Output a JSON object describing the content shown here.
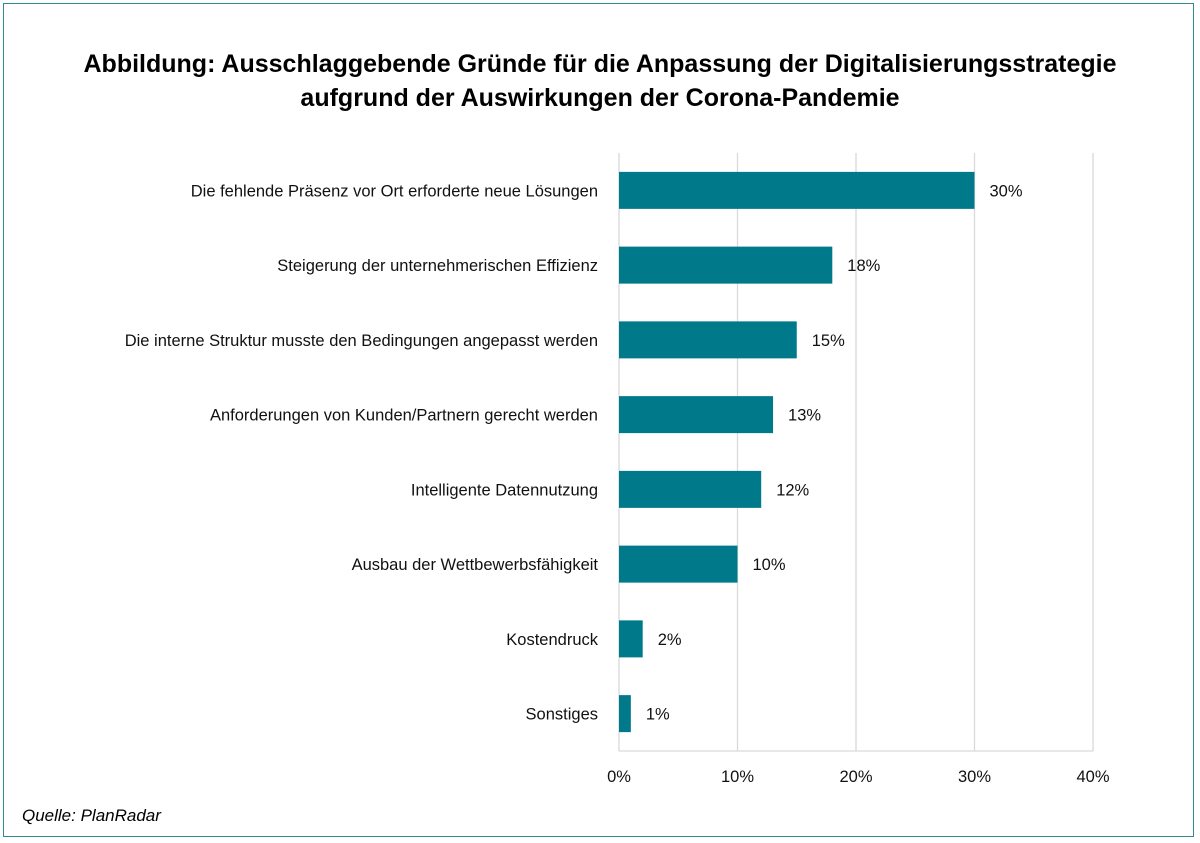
{
  "title": {
    "line1": "Abbildung: Ausschlaggebende Gründe für die Anpassung der Digitalisierungsstrategie",
    "line2": "aufgrund der Auswirkungen der Corona-Pandemie"
  },
  "source": "Quelle: PlanRadar",
  "colors": {
    "bar": "#007a8a",
    "frame": "#2e8b96",
    "grid": "#d9d9d9"
  },
  "chart_data": {
    "type": "bar",
    "orientation": "horizontal",
    "title": "Abbildung: Ausschlaggebende Gründe für die Anpassung der Digitalisierungsstrategie aufgrund der Auswirkungen der Corona-Pandemie",
    "categories": [
      "Die fehlende Präsenz vor Ort erforderte neue Lösungen",
      "Steigerung der unternehmerischen Effizienz",
      "Die interne Struktur musste den Bedingungen angepasst werden",
      "Anforderungen von Kunden/Partnern gerecht werden",
      "Intelligente Datennutzung",
      "Ausbau der Wettbewerbsfähigkeit",
      "Kostendruck",
      "Sonstiges"
    ],
    "values": [
      30,
      18,
      15,
      13,
      12,
      10,
      2,
      1
    ],
    "value_labels": [
      "30%",
      "18%",
      "15%",
      "13%",
      "12%",
      "10%",
      "2%",
      "1%"
    ],
    "xlim": [
      0,
      40
    ],
    "xticks": [
      0,
      10,
      20,
      30,
      40
    ],
    "xtick_labels": [
      "0%",
      "10%",
      "20%",
      "30%",
      "40%"
    ],
    "grid": true,
    "legend": "none"
  }
}
